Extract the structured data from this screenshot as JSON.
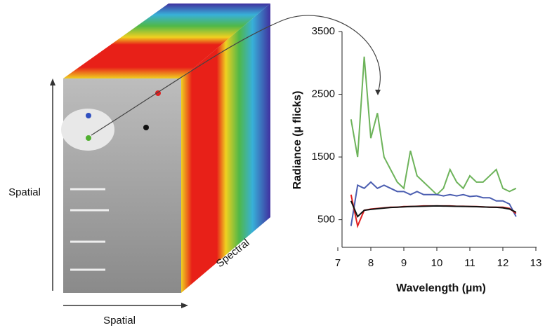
{
  "chart_data": {
    "type": "line",
    "annotations": [
      "Spatial",
      "Spatial",
      "Spectral"
    ],
    "x_label": "Wavelength (µm)",
    "y_label": "Radiance (µ flicks)",
    "xlim": [
      7,
      13
    ],
    "xticks": [
      7,
      8,
      9,
      10,
      11,
      12,
      13
    ],
    "ylim": [
      60,
      3500
    ],
    "yticks": [
      500,
      1500,
      2500,
      3500
    ],
    "x": [
      7.4,
      7.6,
      7.8,
      8.0,
      8.2,
      8.4,
      8.6,
      8.8,
      9.0,
      9.2,
      9.4,
      9.6,
      9.8,
      10.0,
      10.2,
      10.4,
      10.6,
      10.8,
      11.0,
      11.2,
      11.4,
      11.6,
      11.8,
      12.0,
      12.2,
      12.4
    ],
    "series": [
      {
        "color": "#6db35a",
        "values": [
          2100,
          1500,
          3100,
          1800,
          2200,
          1500,
          1300,
          1100,
          1000,
          1600,
          1200,
          1100,
          1000,
          900,
          1000,
          1300,
          1100,
          1000,
          1200,
          1100,
          1100,
          1200,
          1300,
          1000,
          950,
          1000
        ]
      },
      {
        "color": "#4a5db0",
        "values": [
          400,
          1050,
          1000,
          1100,
          1000,
          1050,
          1000,
          950,
          950,
          900,
          950,
          900,
          900,
          900,
          880,
          900,
          880,
          900,
          870,
          880,
          850,
          850,
          800,
          800,
          750,
          550
        ]
      },
      {
        "color": "#e02020",
        "values": [
          900,
          400,
          650,
          670,
          680,
          690,
          700,
          700,
          710,
          710,
          715,
          720,
          720,
          720,
          720,
          720,
          715,
          715,
          710,
          710,
          705,
          700,
          700,
          700,
          680,
          600
        ]
      },
      {
        "color": "#111111",
        "values": [
          800,
          550,
          650,
          665,
          675,
          685,
          695,
          700,
          705,
          710,
          712,
          715,
          718,
          720,
          718,
          716,
          714,
          712,
          710,
          708,
          704,
          700,
          698,
          690,
          670,
          620
        ]
      }
    ]
  }
}
